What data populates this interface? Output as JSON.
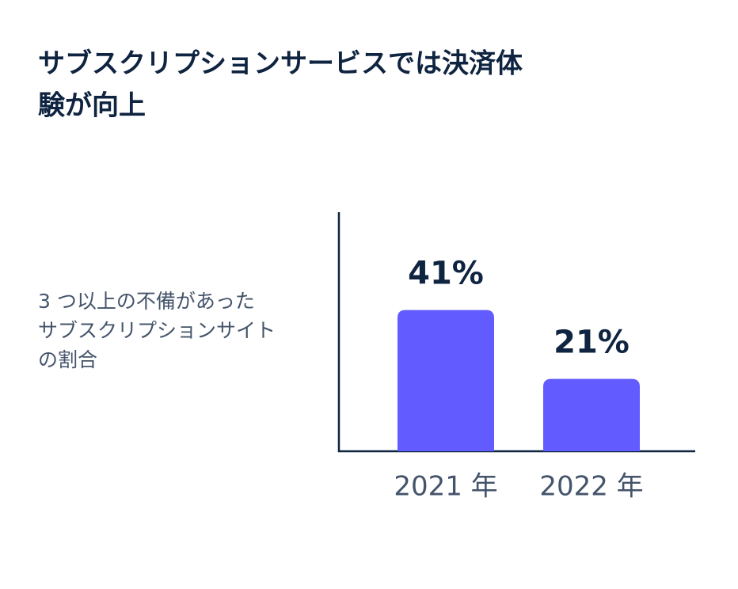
{
  "chart_data": {
    "type": "bar",
    "title": [
      "サブスクリプションサービスでは決済体",
      "験が向上"
    ],
    "description": [
      "3 つ以上の不備があった",
      "サブスクリプションサイト",
      "の割合"
    ],
    "categories": [
      "2021 年",
      "2022 年"
    ],
    "values": [
      41,
      21
    ],
    "value_labels": [
      "41%",
      "21%"
    ],
    "color": "#625bff"
  }
}
